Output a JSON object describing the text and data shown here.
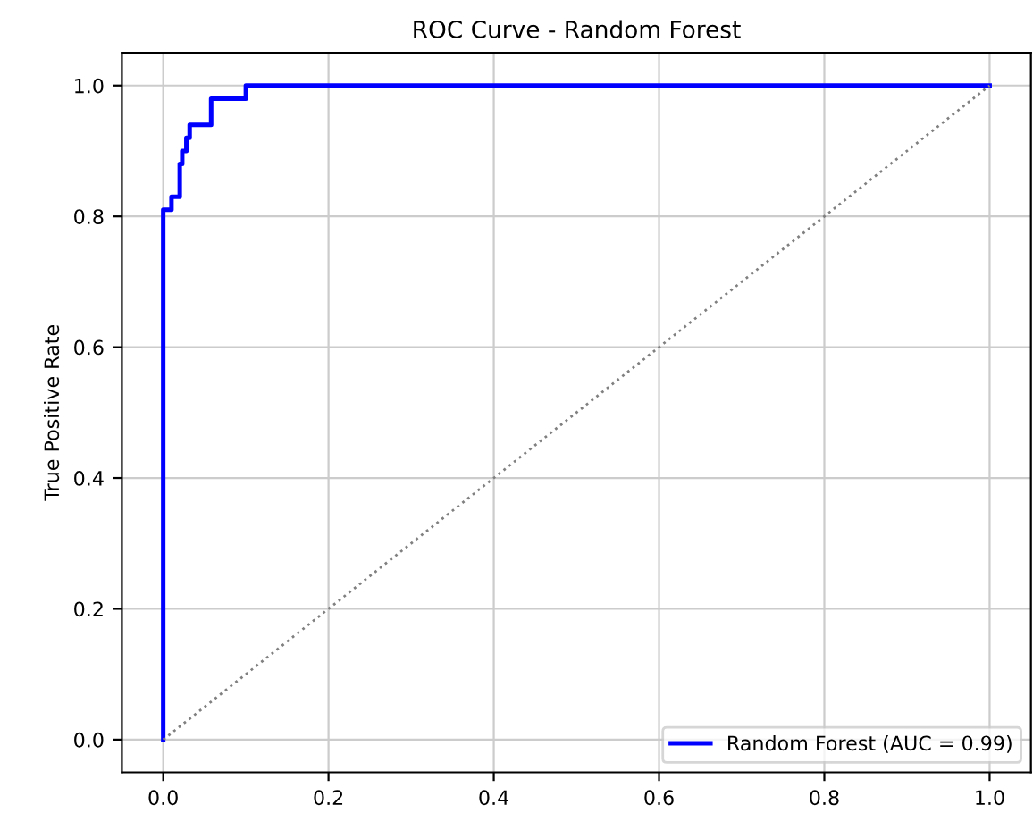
{
  "chart_data": {
    "type": "line",
    "title": "ROC Curve - Random Forest",
    "ylabel": "True Positive Rate",
    "series": [
      {
        "name": "Random Forest (AUC = 0.99)",
        "color": "#0000ff",
        "line_style": "solid",
        "x": [
          0,
          0,
          0.01,
          0.01,
          0.02,
          0.02,
          0.023,
          0.023,
          0.028,
          0.028,
          0.032,
          0.032,
          0.058,
          0.058,
          0.1,
          0.1,
          1.0
        ],
        "values": [
          0,
          0.81,
          0.81,
          0.83,
          0.83,
          0.88,
          0.88,
          0.9,
          0.9,
          0.92,
          0.92,
          0.94,
          0.94,
          0.98,
          0.98,
          1.0,
          1.0
        ]
      },
      {
        "color": "#808080",
        "line_style": "dotted",
        "x": [
          0,
          1
        ],
        "values": [
          0,
          1
        ]
      }
    ],
    "xlim": [
      -0.05,
      1.05
    ],
    "ylim": [
      -0.05,
      1.05
    ],
    "xticks": [
      {
        "value": 0,
        "label": "0.0"
      },
      0.2,
      0.4,
      0.6,
      0.8,
      {
        "value": 1,
        "label": "1.0"
      }
    ],
    "yticks": [
      {
        "value": 0,
        "label": "0.0"
      },
      0.2,
      0.4,
      0.6,
      0.8,
      {
        "value": 1,
        "label": "1.0"
      }
    ],
    "grid": true,
    "legend": "lower right"
  }
}
